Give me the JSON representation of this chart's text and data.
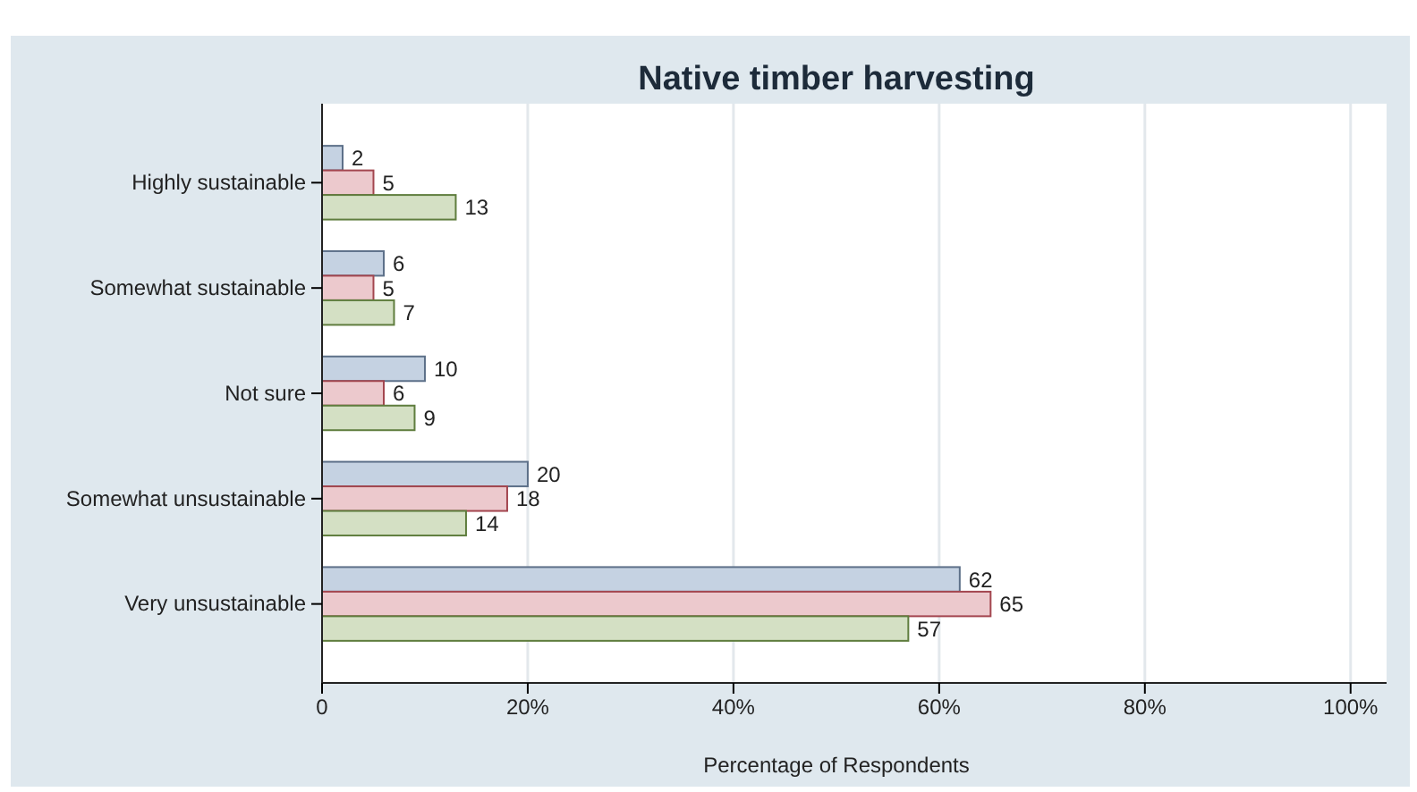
{
  "chart_data": {
    "type": "bar",
    "orientation": "horizontal",
    "title": "Native timber harvesting",
    "xlabel": "Percentage of Respondents",
    "categories": [
      "Highly sustainable",
      "Somewhat sustainable",
      "Not sure",
      "Somewhat unsustainable",
      "Very unsustainable"
    ],
    "series": [
      {
        "color": "#c5d2e2",
        "values": [
          2,
          6,
          10,
          20,
          62
        ]
      },
      {
        "color": "#ecc9cd",
        "values": [
          5,
          5,
          6,
          18,
          65
        ]
      },
      {
        "color": "#d4e0c4",
        "values": [
          13,
          7,
          9,
          14,
          57
        ]
      }
    ],
    "xlim": [
      0,
      103.5
    ],
    "xticks": [
      0,
      {
        "value": 20,
        "label": "20%"
      },
      {
        "value": 40,
        "label": "40%"
      },
      {
        "value": 60,
        "label": "60%"
      },
      {
        "value": 80,
        "label": "80%"
      },
      {
        "value": 100,
        "label": "100%"
      }
    ],
    "grid": "x",
    "data_labels": true
  }
}
